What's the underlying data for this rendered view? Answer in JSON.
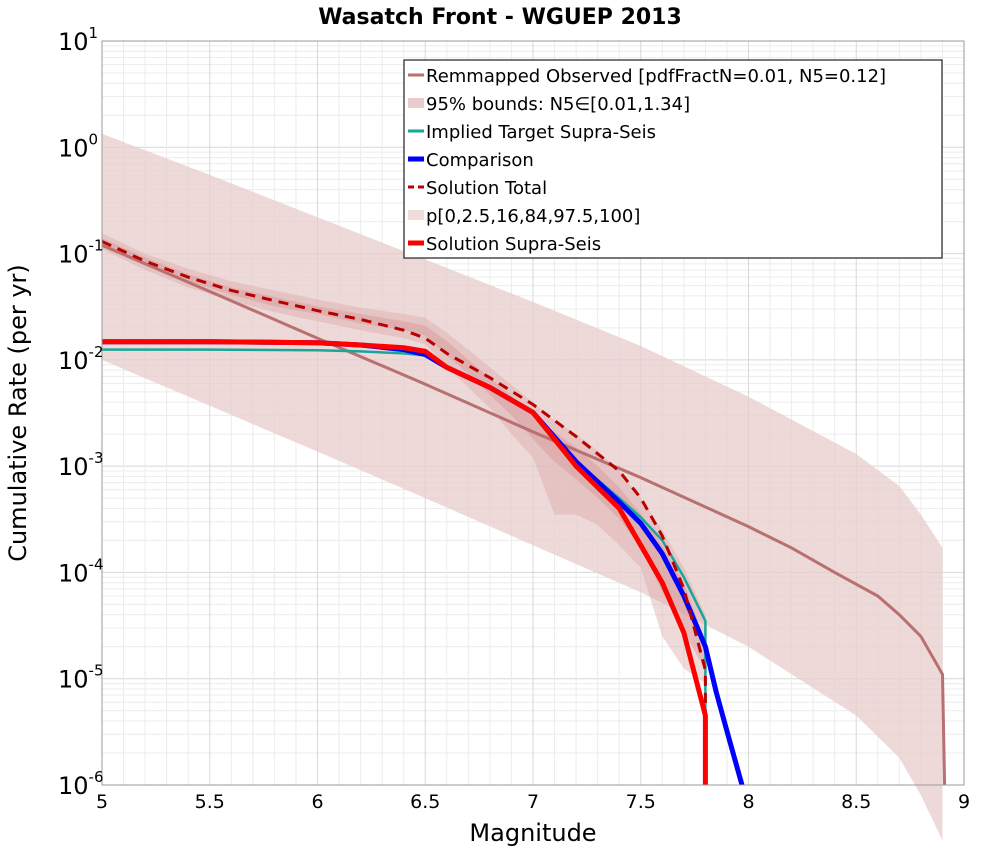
{
  "chart_data": {
    "type": "line",
    "title": "Wasatch Front - WGUEP 2013",
    "xlabel": "Magnitude",
    "ylabel": "Cumulative Rate (per yr)",
    "xlim": [
      5,
      9
    ],
    "ylim_log10": [
      -6,
      1
    ],
    "yscale": "log",
    "grid": true,
    "legend_position": "top-right",
    "x_ticks": [
      "5",
      "5.5",
      "6",
      "6.5",
      "7",
      "7.5",
      "8",
      "8.5",
      "9"
    ],
    "y_ticks": [
      {
        "base": "10",
        "exp": "-6"
      },
      {
        "base": "10",
        "exp": "-5"
      },
      {
        "base": "10",
        "exp": "-4"
      },
      {
        "base": "10",
        "exp": "-3"
      },
      {
        "base": "10",
        "exp": "-2"
      },
      {
        "base": "10",
        "exp": "-1"
      },
      {
        "base": "10",
        "exp": "0"
      },
      {
        "base": "10",
        "exp": "1"
      }
    ],
    "legend": [
      {
        "label": "Remmapped Observed [pdfFractN=0.01, N5=0.12]",
        "style": "line",
        "color": "#b87070"
      },
      {
        "label": "95% bounds: N5∈[0.01,1.34]",
        "style": "band",
        "color": "#e8cccc"
      },
      {
        "label": "Implied Target Supra-Seis",
        "style": "line",
        "color": "#1aa59a"
      },
      {
        "label": "Comparison",
        "style": "thick",
        "color": "#0000ff"
      },
      {
        "label": "Solution Total",
        "style": "dash",
        "color": "#b80000"
      },
      {
        "label": "p[0,2.5,16,84,97.5,100]",
        "style": "band",
        "color": "#f0dcdc"
      },
      {
        "label": "Solution Supra-Seis",
        "style": "thick",
        "color": "#ff0000"
      }
    ],
    "observed_bounds": {
      "x": [
        5.0,
        5.5,
        6.0,
        6.5,
        7.0,
        7.5,
        8.0,
        8.5,
        8.7,
        8.8,
        8.9
      ],
      "upper": [
        1.34,
        0.55,
        0.22,
        0.088,
        0.035,
        0.0135,
        0.0045,
        0.0013,
        0.00065,
        0.00035,
        0.00017
      ],
      "lower": [
        0.01,
        0.0037,
        0.00137,
        0.0005,
        0.00018,
        6.5e-05,
        2e-05,
        4.5e-06,
        1.8e-06,
        8e-07,
        3e-07
      ]
    },
    "observed_line": {
      "x": [
        5.0,
        5.5,
        6.0,
        6.5,
        7.0,
        7.5,
        8.0,
        8.2,
        8.4,
        8.6,
        8.7,
        8.8,
        8.9,
        8.91
      ],
      "y": [
        0.12,
        0.044,
        0.016,
        0.0059,
        0.0021,
        0.00078,
        0.00027,
        0.00017,
        0.0001,
        6e-05,
        4e-05,
        2.5e-05,
        1.1e-05,
        1e-06
      ]
    },
    "outer_band": {
      "x": [
        5.0,
        5.2,
        5.4,
        5.6,
        5.8,
        6.0,
        6.2,
        6.4,
        6.5,
        6.6,
        6.7,
        6.8,
        6.9,
        7.0,
        7.1,
        7.2,
        7.3,
        7.4,
        7.5,
        7.6,
        7.7,
        7.8
      ],
      "upper": [
        0.155,
        0.1,
        0.072,
        0.055,
        0.045,
        0.037,
        0.031,
        0.027,
        0.025,
        0.018,
        0.0125,
        0.0085,
        0.0058,
        0.004,
        0.0027,
        0.002,
        0.0014,
        0.0009,
        0.0005,
        0.00025,
        0.00011,
        4e-05
      ],
      "lower": [
        0.11,
        0.07,
        0.048,
        0.036,
        0.028,
        0.023,
        0.019,
        0.016,
        0.014,
        0.0085,
        0.0055,
        0.0035,
        0.002,
        0.0012,
        0.00035,
        0.00035,
        0.00028,
        0.00018,
        0.00011,
        2.5e-05,
        1.25e-05,
        9e-06
      ]
    },
    "inner_band": {
      "x": [
        5.0,
        5.2,
        5.4,
        5.6,
        5.8,
        6.0,
        6.2,
        6.4,
        6.5,
        6.6,
        6.7,
        6.8,
        6.9,
        7.0,
        7.1,
        7.2,
        7.3,
        7.4,
        7.5,
        7.6,
        7.7,
        7.8
      ],
      "upper": [
        0.14,
        0.092,
        0.064,
        0.048,
        0.039,
        0.032,
        0.027,
        0.023,
        0.021,
        0.015,
        0.01,
        0.0068,
        0.0046,
        0.003,
        0.0021,
        0.0015,
        0.001,
        0.00063,
        0.00036,
        0.00018,
        8e-05,
        2.2e-05
      ],
      "lower": [
        0.12,
        0.078,
        0.055,
        0.041,
        0.032,
        0.027,
        0.022,
        0.019,
        0.017,
        0.011,
        0.0074,
        0.0047,
        0.003,
        0.0018,
        0.0011,
        0.00075,
        0.0005,
        0.00032,
        0.00017,
        6.5e-05,
        2.8e-05,
        1.2e-05
      ]
    },
    "series": [
      {
        "name": "Implied Target Supra-Seis",
        "color": "#1aa59a",
        "width": 2.5,
        "x": [
          5.0,
          5.5,
          6.0,
          6.2,
          6.4,
          6.5,
          6.6,
          6.8,
          7.0,
          7.2,
          7.4,
          7.5,
          7.6,
          7.7,
          7.8,
          7.8,
          7.8
        ],
        "y": [
          0.0125,
          0.0125,
          0.0123,
          0.012,
          0.0115,
          0.011,
          0.0085,
          0.0055,
          0.0032,
          0.0011,
          0.0005,
          0.00033,
          0.0002,
          9e-05,
          3.5e-05,
          5e-06,
          1e-06
        ]
      },
      {
        "name": "Comparison",
        "color": "#0000ff",
        "width": 5,
        "x": [
          5.0,
          5.5,
          6.0,
          6.2,
          6.4,
          6.5,
          6.6,
          6.8,
          7.0,
          7.2,
          7.4,
          7.5,
          7.6,
          7.7,
          7.8,
          7.85,
          7.9,
          7.97
        ],
        "y": [
          0.0148,
          0.0148,
          0.0145,
          0.0138,
          0.0125,
          0.0112,
          0.0085,
          0.0055,
          0.0032,
          0.0011,
          0.00046,
          0.00029,
          0.00015,
          6e-05,
          2e-05,
          7.5e-06,
          3.2e-06,
          1e-06
        ]
      },
      {
        "name": "Solution Total",
        "color": "#b80000",
        "width": 3,
        "dash": true,
        "x": [
          5.0,
          5.2,
          5.4,
          5.6,
          5.8,
          6.0,
          6.2,
          6.4,
          6.5,
          6.6,
          6.8,
          7.0,
          7.2,
          7.4,
          7.5,
          7.6,
          7.7,
          7.8,
          7.8
        ],
        "y": [
          0.13,
          0.085,
          0.06,
          0.045,
          0.036,
          0.029,
          0.024,
          0.019,
          0.016,
          0.0115,
          0.0068,
          0.0038,
          0.0019,
          0.0009,
          0.0005,
          0.00022,
          7e-05,
          1.2e-05,
          1e-06
        ]
      },
      {
        "name": "Solution Supra-Seis",
        "color": "#ff0000",
        "width": 5,
        "x": [
          5.0,
          5.5,
          6.0,
          6.2,
          6.4,
          6.5,
          6.6,
          6.8,
          7.0,
          7.2,
          7.4,
          7.5,
          7.6,
          7.7,
          7.8,
          7.8,
          7.81
        ],
        "y": [
          0.0148,
          0.0148,
          0.0145,
          0.0138,
          0.013,
          0.012,
          0.0085,
          0.0055,
          0.0032,
          0.001,
          0.0004,
          0.00018,
          8e-05,
          2.7e-05,
          4.5e-06,
          1e-06,
          1e-06
        ]
      }
    ]
  }
}
